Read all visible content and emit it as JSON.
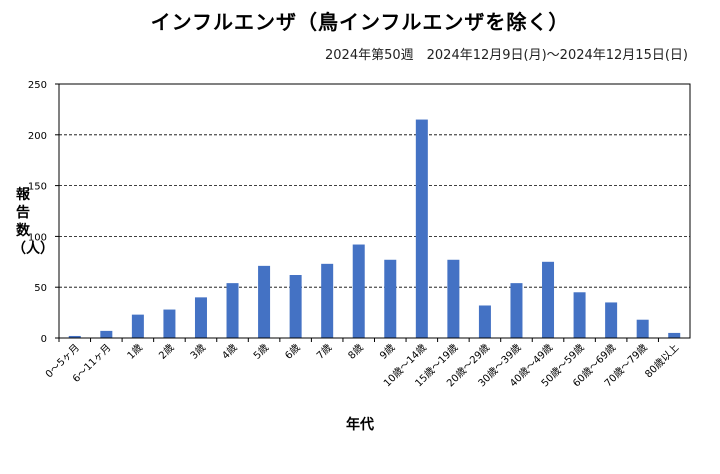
{
  "chart_data": {
    "type": "bar",
    "title": "インフルエンザ（鳥インフルエンザを除く）",
    "subtitle": "2024年第50週　2024年12月9日(月)～2024年12月15日(日)",
    "xlabel": "年代",
    "ylabel": "報告数（人）",
    "ylim": [
      0,
      250
    ],
    "yticks": [
      0,
      50,
      100,
      150,
      200,
      250
    ],
    "grid": true,
    "bar_color": "#4472C4",
    "categories": [
      "0～5ヶ月",
      "6～11ヶ月",
      "1歳",
      "2歳",
      "3歳",
      "4歳",
      "5歳",
      "6歳",
      "7歳",
      "8歳",
      "9歳",
      "10歳～14歳",
      "15歳～19歳",
      "20歳～29歳",
      "30歳～39歳",
      "40歳～49歳",
      "50歳～59歳",
      "60歳～69歳",
      "70歳～79歳",
      "80歳以上"
    ],
    "values": [
      2,
      7,
      23,
      28,
      40,
      54,
      71,
      62,
      73,
      92,
      77,
      215,
      77,
      32,
      54,
      75,
      45,
      35,
      18,
      5
    ]
  }
}
